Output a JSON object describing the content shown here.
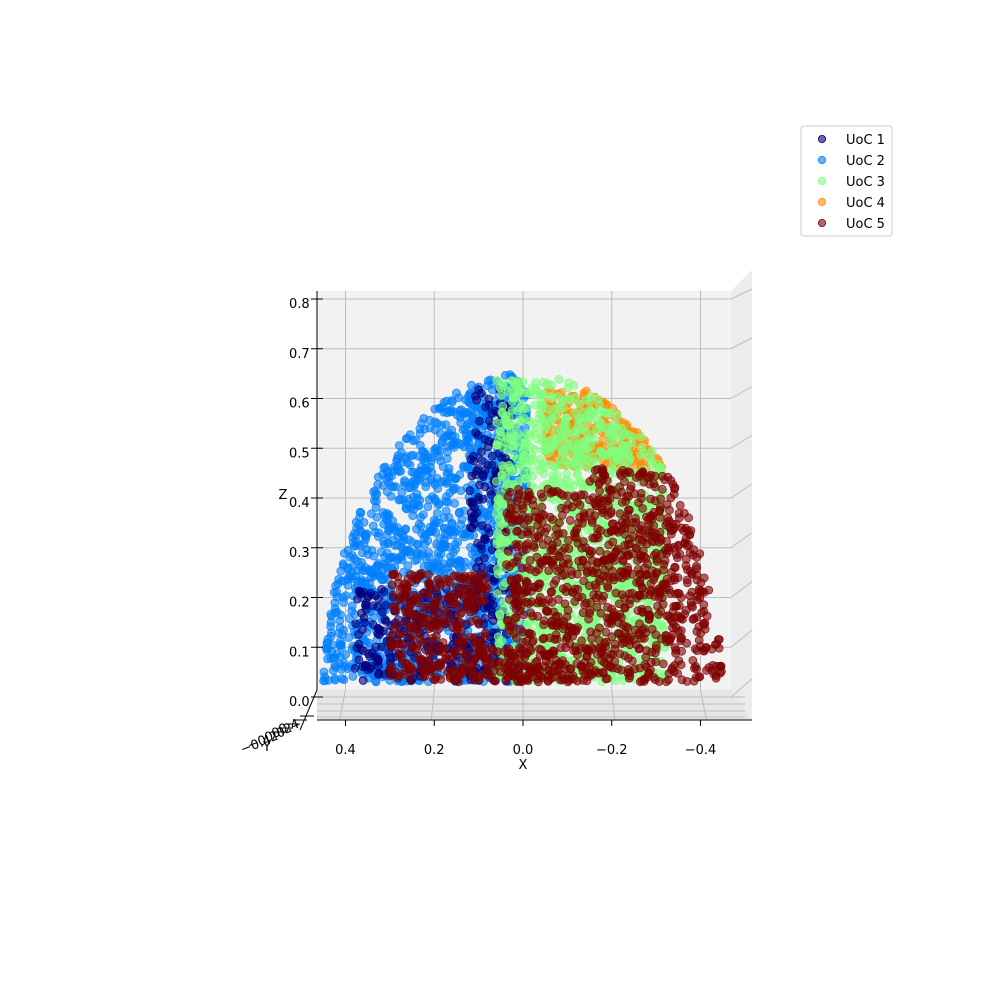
{
  "chart_data": {
    "type": "scatter",
    "projection": "3d",
    "title": "",
    "xlabel": "X",
    "ylabel": "Y",
    "zlabel": "Z",
    "xlim": [
      0.5,
      -0.5
    ],
    "zlim": [
      0.0,
      0.8
    ],
    "x_ticks": [
      "0.4",
      "0.2",
      "0.0",
      "−0.2",
      "−0.4"
    ],
    "x_tick_values": [
      0.4,
      0.2,
      0.0,
      -0.2,
      -0.4
    ],
    "z_ticks": [
      "0.0",
      "0.1",
      "0.2",
      "0.3",
      "0.4",
      "0.5",
      "0.6",
      "0.7",
      "0.8"
    ],
    "z_tick_values": [
      0.0,
      0.1,
      0.2,
      0.3,
      0.4,
      0.5,
      0.6,
      0.7,
      0.8
    ],
    "y_ticks": [
      "0.4",
      "0.2",
      "0.0",
      "−0.2",
      "−0.4"
    ],
    "grid": true,
    "legend": "top-right",
    "series": [
      {
        "name": "UoC 1",
        "color": "#00007f",
        "region": "x from 0.05 to 0.35, z from 0.05 to 0.55"
      },
      {
        "name": "UoC 2",
        "color": "#007fff",
        "region": "x from 0.0 to 0.45, z from 0.05 to 0.65"
      },
      {
        "name": "UoC 3",
        "color": "#7fff7f",
        "region": "x from -0.25 to 0.05, z from 0.05 to 0.6"
      },
      {
        "name": "UoC 4",
        "color": "#ff8c00",
        "region": "x from -0.3 to -0.1, z from 0.45 to 0.6"
      },
      {
        "name": "UoC 5",
        "color": "#7f0000",
        "region": "x from -0.45 to 0.3, z from 0.05 to 0.45"
      }
    ]
  }
}
